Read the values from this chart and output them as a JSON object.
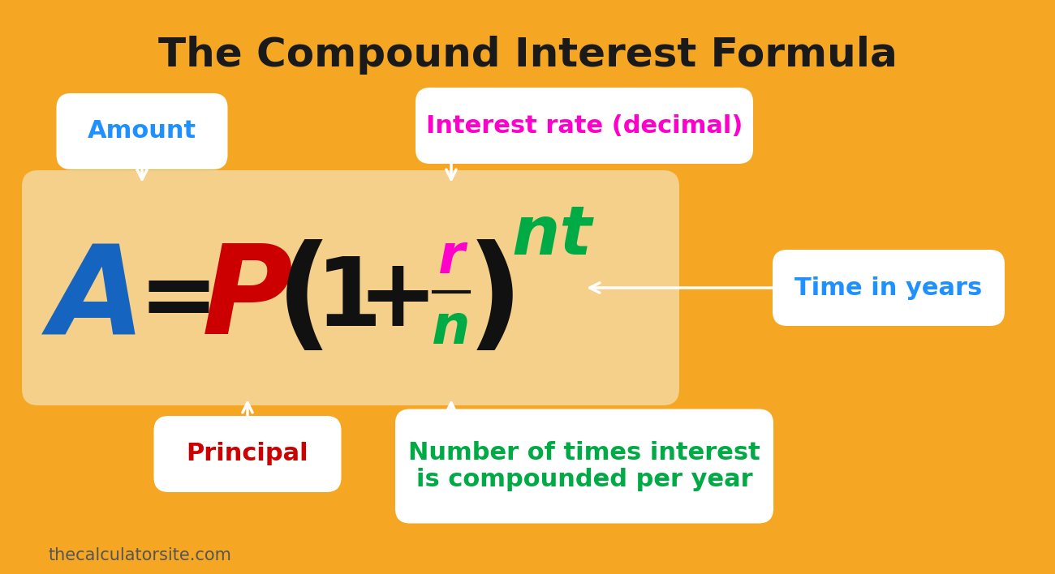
{
  "bg_color": "#F5A623",
  "title": "The Compound Interest Formula",
  "title_color": "#1a1a1a",
  "title_fontsize": 36,
  "formula_box_color": "#F5D08A",
  "watermark": "thecalculatorsite.com",
  "formula": {
    "A_color": "#1565C0",
    "P_color": "#CC0000",
    "paren_color": "#111111",
    "r_color": "#FF00CC",
    "n_color": "#00AA44",
    "nt_color": "#00AA44"
  },
  "label_amount_text": "Amount",
  "label_amount_color": "#1E90FF",
  "label_interest_text": "Interest rate (decimal)",
  "label_interest_color": "#FF00CC",
  "label_principal_text": "Principal",
  "label_principal_color": "#CC0000",
  "label_ntimes_text": "Number of times interest\nis compounded per year",
  "label_ntimes_color": "#00AA44",
  "label_time_text": "Time in years",
  "label_time_color": "#1E90FF"
}
